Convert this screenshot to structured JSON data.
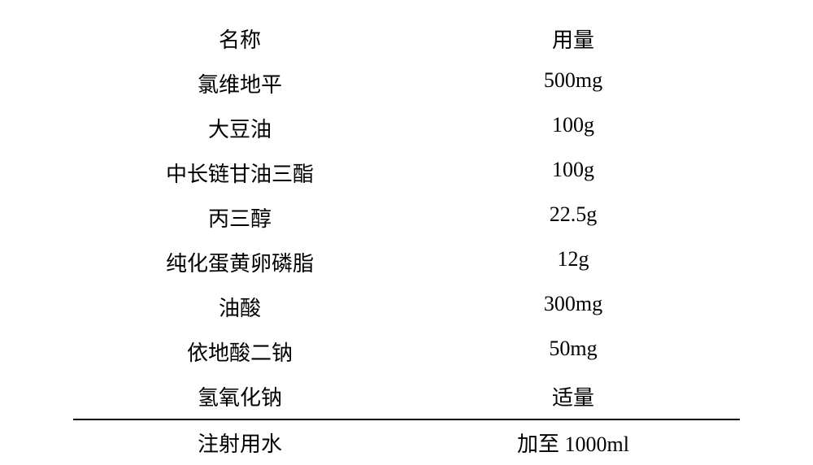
{
  "table": {
    "header": {
      "name_label": "名称",
      "amount_label": "用量"
    },
    "rows": [
      {
        "name": "氯维地平",
        "amount": "500mg"
      },
      {
        "name": "大豆油",
        "amount": "100g"
      },
      {
        "name": "中长链甘油三酯",
        "amount": "100g"
      },
      {
        "name": "丙三醇",
        "amount": "22.5g"
      },
      {
        "name": "纯化蛋黄卵磷脂",
        "amount": "12g"
      },
      {
        "name": "油酸",
        "amount": "300mg"
      },
      {
        "name": "依地酸二钠",
        "amount": "50mg"
      },
      {
        "name": "氢氧化钠",
        "amount": "适量"
      }
    ],
    "footer": {
      "name": "注射用水",
      "amount": "加至 1000ml"
    },
    "styling": {
      "font_size": 26,
      "text_color": "#000000",
      "background_color": "#ffffff",
      "divider_color": "#000000",
      "divider_width": 2,
      "row_padding_vertical": 9,
      "column_alignment": "center"
    }
  }
}
